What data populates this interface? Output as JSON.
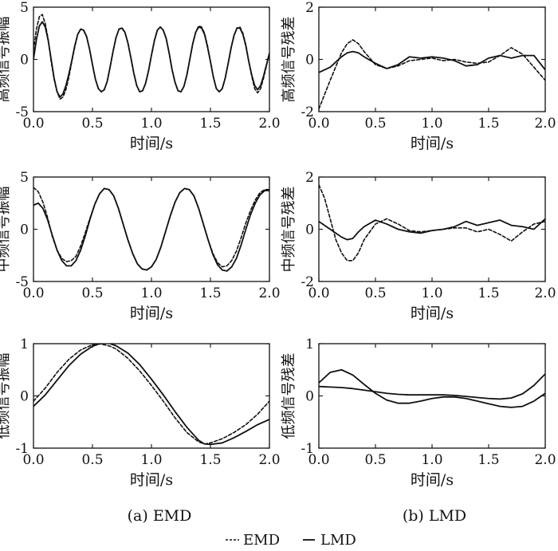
{
  "chart_data": [
    {
      "id": "emd-high",
      "type": "line",
      "ylabel": "高频信号振幅",
      "xlabel": "时间/s",
      "xlim": [
        0,
        2
      ],
      "ylim": [
        -5,
        5
      ],
      "xticks": [
        "0.0",
        "0.5",
        "1.0",
        "1.5",
        "2.0"
      ],
      "yticks": [
        {
          "v": 5,
          "label": "5"
        },
        {
          "v": 0,
          "label": "0"
        },
        {
          "v": -5,
          "label": "-5"
        }
      ],
      "x": [
        0.0,
        0.025,
        0.05,
        0.075,
        0.1,
        0.125,
        0.15,
        0.175,
        0.2,
        0.225,
        0.25,
        0.275,
        0.3,
        0.325,
        0.35,
        0.375,
        0.4,
        0.425,
        0.45,
        0.475,
        0.5,
        0.525,
        0.55,
        0.575,
        0.6,
        0.625,
        0.65,
        0.675,
        0.7,
        0.725,
        0.75,
        0.775,
        0.8,
        0.825,
        0.85,
        0.875,
        0.9,
        0.925,
        0.95,
        0.975,
        1.0,
        1.025,
        1.05,
        1.075,
        1.1,
        1.125,
        1.15,
        1.175,
        1.2,
        1.225,
        1.25,
        1.275,
        1.3,
        1.325,
        1.35,
        1.375,
        1.4,
        1.425,
        1.45,
        1.475,
        1.5,
        1.525,
        1.55,
        1.575,
        1.6,
        1.625,
        1.65,
        1.675,
        1.7,
        1.725,
        1.75,
        1.775,
        1.8,
        1.825,
        1.85,
        1.875,
        1.9,
        1.925,
        1.95,
        1.975,
        2.0
      ],
      "series": [
        {
          "name": "EMD",
          "style": "dashed",
          "values": [
            0.9,
            2.9,
            4.1,
            4.3,
            3.4,
            1.9,
            -0.2,
            -1.9,
            -3.1,
            -3.8,
            -3.6,
            -2.9,
            -1.7,
            -0.2,
            1.2,
            2.4,
            2.9,
            2.8,
            2.2,
            1.0,
            -0.5,
            -1.9,
            -2.8,
            -3.1,
            -2.9,
            -2.1,
            -0.7,
            0.8,
            2.1,
            2.9,
            3.0,
            2.6,
            1.6,
            0.2,
            -1.3,
            -2.5,
            -3.1,
            -3.0,
            -2.3,
            -1.1,
            0.4,
            1.8,
            2.8,
            3.1,
            2.8,
            2.0,
            0.6,
            -1.0,
            -2.2,
            -3.0,
            -3.1,
            -2.6,
            -1.5,
            0.0,
            1.5,
            2.6,
            3.2,
            3.1,
            2.5,
            1.3,
            -0.2,
            -1.7,
            -2.8,
            -3.1,
            -2.8,
            -1.8,
            -0.4,
            1.1,
            2.3,
            3.0,
            3.1,
            2.5,
            1.4,
            -0.2,
            -1.6,
            -2.8,
            -3.2,
            -2.8,
            -1.8,
            -0.6,
            0.6
          ]
        },
        {
          "name": "LMD",
          "style": "solid",
          "values": [
            0.0,
            1.9,
            3.2,
            3.6,
            3.1,
            1.8,
            0.0,
            -1.8,
            -3.1,
            -3.6,
            -3.3,
            -2.5,
            -1.4,
            -0.1,
            1.3,
            2.4,
            2.9,
            2.8,
            2.2,
            1.0,
            -0.5,
            -1.9,
            -2.8,
            -3.1,
            -2.9,
            -2.1,
            -0.7,
            0.8,
            2.1,
            2.9,
            3.0,
            2.6,
            1.6,
            0.2,
            -1.3,
            -2.5,
            -3.1,
            -3.0,
            -2.3,
            -1.1,
            0.4,
            1.8,
            2.8,
            3.1,
            2.8,
            2.0,
            0.6,
            -1.0,
            -2.2,
            -3.0,
            -3.1,
            -2.6,
            -1.5,
            0.0,
            1.5,
            2.6,
            3.1,
            3.0,
            2.4,
            1.2,
            -0.2,
            -1.7,
            -2.8,
            -3.1,
            -2.8,
            -1.8,
            -0.4,
            1.1,
            2.3,
            3.0,
            3.0,
            2.4,
            1.3,
            -0.2,
            -1.5,
            -2.5,
            -2.9,
            -2.5,
            -1.6,
            -0.5,
            0.6
          ]
        }
      ]
    },
    {
      "id": "lmd-high",
      "type": "line",
      "ylabel": "高频信号残差",
      "xlabel": "时间/s",
      "xlim": [
        0,
        2
      ],
      "ylim": [
        -2,
        2
      ],
      "xticks": [
        "0.0",
        "0.5",
        "1.0",
        "1.5",
        "2.0"
      ],
      "yticks": [
        {
          "v": 2,
          "label": "2"
        },
        {
          "v": 0,
          "label": "0"
        },
        {
          "v": -2,
          "label": "-2"
        }
      ],
      "x": [
        0.0,
        0.1,
        0.2,
        0.25,
        0.3,
        0.35,
        0.4,
        0.5,
        0.6,
        0.7,
        0.8,
        0.9,
        1.0,
        1.1,
        1.2,
        1.3,
        1.4,
        1.5,
        1.6,
        1.7,
        1.8,
        1.9,
        2.0
      ],
      "series": [
        {
          "name": "EMD",
          "style": "dashed",
          "values": [
            -1.9,
            -0.8,
            0.25,
            0.6,
            0.75,
            0.6,
            0.3,
            -0.2,
            -0.35,
            -0.25,
            -0.05,
            0.0,
            0.05,
            -0.05,
            0.0,
            -0.1,
            -0.15,
            -0.1,
            0.15,
            0.45,
            0.2,
            -0.3,
            -0.8
          ]
        },
        {
          "name": "LMD",
          "style": "solid",
          "values": [
            -0.5,
            -0.3,
            0.1,
            0.25,
            0.3,
            0.25,
            0.1,
            -0.15,
            -0.35,
            -0.2,
            0.1,
            0.05,
            0.1,
            0.05,
            -0.05,
            -0.25,
            -0.2,
            0.05,
            0.15,
            0.05,
            0.15,
            0.15,
            -0.4
          ]
        }
      ]
    },
    {
      "id": "emd-mid",
      "type": "line",
      "ylabel": "中频信号振幅",
      "xlabel": "时间/s",
      "xlim": [
        0,
        2
      ],
      "ylim": [
        -5,
        5
      ],
      "xticks": [
        "0.0",
        "0.5",
        "1.0",
        "1.5",
        "2.0"
      ],
      "yticks": [
        {
          "v": 5,
          "label": "5"
        },
        {
          "v": 0,
          "label": "0"
        },
        {
          "v": -5,
          "label": "-5"
        }
      ],
      "x": [
        0.0,
        0.04,
        0.08,
        0.12,
        0.16,
        0.2,
        0.24,
        0.28,
        0.32,
        0.36,
        0.4,
        0.44,
        0.48,
        0.52,
        0.56,
        0.6,
        0.64,
        0.68,
        0.72,
        0.76,
        0.8,
        0.84,
        0.88,
        0.92,
        0.96,
        1.0,
        1.04,
        1.08,
        1.12,
        1.16,
        1.2,
        1.24,
        1.28,
        1.32,
        1.36,
        1.4,
        1.44,
        1.48,
        1.52,
        1.56,
        1.6,
        1.64,
        1.68,
        1.72,
        1.76,
        1.8,
        1.84,
        1.88,
        1.92,
        1.96,
        2.0
      ],
      "series": [
        {
          "name": "EMD",
          "style": "dashed",
          "values": [
            4.0,
            3.6,
            2.6,
            1.1,
            -0.7,
            -2.0,
            -2.8,
            -3.1,
            -3.0,
            -2.6,
            -1.6,
            -0.3,
            1.1,
            2.4,
            3.4,
            3.9,
            3.8,
            3.2,
            2.0,
            0.5,
            -1.0,
            -2.3,
            -3.3,
            -3.8,
            -3.9,
            -3.6,
            -2.9,
            -1.7,
            -0.2,
            1.3,
            2.6,
            3.5,
            3.9,
            3.8,
            3.2,
            2.0,
            0.5,
            -1.0,
            -2.3,
            -3.2,
            -3.6,
            -3.5,
            -3.0,
            -2.1,
            -0.8,
            0.6,
            1.8,
            2.8,
            3.5,
            3.8,
            3.8
          ]
        },
        {
          "name": "LMD",
          "style": "solid",
          "values": [
            2.3,
            2.5,
            2.0,
            0.9,
            -0.6,
            -2.0,
            -3.0,
            -3.5,
            -3.5,
            -3.0,
            -2.0,
            -0.6,
            1.0,
            2.4,
            3.4,
            3.9,
            3.8,
            3.2,
            2.0,
            0.5,
            -1.0,
            -2.3,
            -3.3,
            -3.8,
            -3.9,
            -3.6,
            -2.9,
            -1.7,
            -0.2,
            1.3,
            2.6,
            3.5,
            3.9,
            3.8,
            3.2,
            2.0,
            0.5,
            -1.0,
            -2.4,
            -3.4,
            -3.9,
            -4.0,
            -3.6,
            -2.8,
            -1.5,
            0.0,
            1.4,
            2.5,
            3.3,
            3.7,
            3.7
          ]
        }
      ]
    },
    {
      "id": "lmd-mid",
      "type": "line",
      "ylabel": "中频信号残差",
      "xlabel": "时间/s",
      "xlim": [
        0,
        2
      ],
      "ylim": [
        -2,
        2
      ],
      "xticks": [
        "0.0",
        "0.5",
        "1.0",
        "1.5",
        "2.0"
      ],
      "yticks": [
        {
          "v": 2,
          "label": "2"
        },
        {
          "v": 0,
          "label": "0"
        },
        {
          "v": -2,
          "label": "-2"
        }
      ],
      "x": [
        0.0,
        0.05,
        0.1,
        0.15,
        0.2,
        0.25,
        0.3,
        0.35,
        0.4,
        0.5,
        0.6,
        0.7,
        0.8,
        0.9,
        1.0,
        1.1,
        1.2,
        1.3,
        1.4,
        1.5,
        1.6,
        1.7,
        1.8,
        1.9,
        2.0
      ],
      "series": [
        {
          "name": "EMD",
          "style": "dashed",
          "values": [
            1.7,
            1.2,
            0.4,
            -0.4,
            -0.9,
            -1.2,
            -1.2,
            -0.9,
            -0.4,
            0.2,
            0.4,
            0.2,
            -0.05,
            -0.1,
            -0.05,
            0.0,
            0.05,
            0.05,
            -0.1,
            0.0,
            -0.2,
            -0.45,
            -0.1,
            0.2,
            0.3
          ]
        },
        {
          "name": "LMD",
          "style": "solid",
          "values": [
            0.3,
            0.15,
            0.0,
            -0.15,
            -0.3,
            -0.4,
            -0.35,
            -0.1,
            0.1,
            0.35,
            0.2,
            0.0,
            -0.1,
            -0.15,
            -0.05,
            0.0,
            0.1,
            0.3,
            0.15,
            0.25,
            0.35,
            0.15,
            0.1,
            0.0,
            0.4
          ]
        }
      ]
    },
    {
      "id": "emd-low",
      "type": "line",
      "ylabel": "低频信号振幅",
      "xlabel": "时间/s",
      "xlim": [
        0,
        2
      ],
      "ylim": [
        -1,
        1
      ],
      "xticks": [
        "0.0",
        "0.5",
        "1.0",
        "1.5",
        "2.0"
      ],
      "yticks": [
        {
          "v": 1,
          "label": "1"
        },
        {
          "v": 0,
          "label": "0"
        },
        {
          "v": -1,
          "label": "-1"
        }
      ],
      "x": [
        0.0,
        0.1,
        0.2,
        0.3,
        0.4,
        0.5,
        0.55,
        0.6,
        0.65,
        0.7,
        0.8,
        0.9,
        1.0,
        1.1,
        1.2,
        1.3,
        1.4,
        1.45,
        1.5,
        1.6,
        1.7,
        1.8,
        1.9,
        2.0
      ],
      "series": [
        {
          "name": "EMD",
          "style": "dashed",
          "values": [
            -0.1,
            0.15,
            0.45,
            0.7,
            0.88,
            0.98,
            1.0,
            0.98,
            0.95,
            0.9,
            0.72,
            0.48,
            0.2,
            -0.1,
            -0.42,
            -0.7,
            -0.88,
            -0.92,
            -0.9,
            -0.82,
            -0.7,
            -0.55,
            -0.35,
            -0.1
          ]
        },
        {
          "name": "LMD",
          "style": "solid",
          "values": [
            -0.2,
            0.02,
            0.3,
            0.58,
            0.8,
            0.95,
            0.99,
            1.02,
            1.0,
            0.96,
            0.82,
            0.6,
            0.32,
            0.02,
            -0.3,
            -0.6,
            -0.85,
            -0.92,
            -0.93,
            -0.9,
            -0.8,
            -0.68,
            -0.55,
            -0.45
          ]
        }
      ]
    },
    {
      "id": "lmd-low",
      "type": "line",
      "ylabel": "低频信号残差",
      "xlabel": "时间/s",
      "xlim": [
        0,
        2
      ],
      "ylim": [
        -1,
        1
      ],
      "xticks": [
        "0.0",
        "0.5",
        "1.0",
        "1.5",
        "2.0"
      ],
      "yticks": [
        {
          "v": 1,
          "label": "1"
        },
        {
          "v": 0,
          "label": "0"
        },
        {
          "v": -1,
          "label": "-1"
        }
      ],
      "x": [
        0.0,
        0.1,
        0.2,
        0.3,
        0.4,
        0.5,
        0.6,
        0.7,
        0.8,
        0.9,
        1.0,
        1.1,
        1.2,
        1.3,
        1.4,
        1.5,
        1.6,
        1.7,
        1.8,
        1.9,
        2.0
      ],
      "series": [
        {
          "name": "EMD",
          "style": "solid",
          "values": [
            0.18,
            0.17,
            0.16,
            0.14,
            0.11,
            0.08,
            0.05,
            0.03,
            0.02,
            0.02,
            0.02,
            0.02,
            0.01,
            -0.01,
            -0.03,
            -0.05,
            -0.06,
            -0.04,
            0.04,
            0.2,
            0.42
          ]
        },
        {
          "name": "LMD",
          "style": "solid",
          "values": [
            0.25,
            0.45,
            0.5,
            0.4,
            0.22,
            0.05,
            -0.08,
            -0.14,
            -0.14,
            -0.1,
            -0.05,
            -0.02,
            -0.02,
            -0.05,
            -0.1,
            -0.15,
            -0.2,
            -0.22,
            -0.2,
            -0.1,
            0.05
          ]
        }
      ]
    }
  ],
  "captions": {
    "left": "(a) EMD",
    "right": "(b) LMD"
  },
  "legend": [
    {
      "label": "EMD",
      "style": "dashed"
    },
    {
      "label": "LMD",
      "style": "solid"
    }
  ],
  "colors": {
    "line": "#111111",
    "axis": "#111111",
    "background": "#ffffff"
  }
}
